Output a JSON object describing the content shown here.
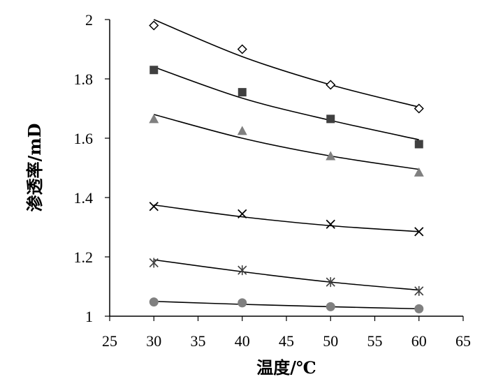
{
  "chart_data": {
    "type": "scatter",
    "xlabel": "温度/℃",
    "ylabel": "渗透率/mD",
    "xlim": [
      25,
      65
    ],
    "ylim": [
      1,
      2
    ],
    "xticks": [
      25,
      30,
      35,
      40,
      45,
      50,
      55,
      60,
      65
    ],
    "yticks": [
      1,
      1.2,
      1.4,
      1.6,
      1.8,
      2
    ],
    "ytick_labels": [
      "1",
      "1.2",
      "1.4",
      "1.6",
      "1.8",
      "2"
    ],
    "grid": false,
    "legend": "none",
    "x": [
      30,
      40,
      50,
      60
    ],
    "series": [
      {
        "marker": "diamond-open",
        "color": "#000000",
        "values": [
          1.98,
          1.9,
          1.78,
          1.7
        ],
        "trend": [
          2.0,
          1.875,
          1.78,
          1.705
        ]
      },
      {
        "marker": "square",
        "color": "#404040",
        "values": [
          1.83,
          1.755,
          1.665,
          1.58
        ],
        "trend": [
          1.84,
          1.735,
          1.66,
          1.595
        ]
      },
      {
        "marker": "triangle",
        "color": "#808080",
        "values": [
          1.665,
          1.625,
          1.54,
          1.485
        ],
        "trend": [
          1.68,
          1.6,
          1.54,
          1.495
        ]
      },
      {
        "marker": "x",
        "color": "#000000",
        "values": [
          1.37,
          1.345,
          1.31,
          1.285
        ],
        "trend": [
          1.375,
          1.335,
          1.305,
          1.285
        ]
      },
      {
        "marker": "star",
        "color": "#404040",
        "values": [
          1.18,
          1.155,
          1.115,
          1.085
        ],
        "trend": [
          1.19,
          1.15,
          1.115,
          1.088
        ]
      },
      {
        "marker": "circle",
        "color": "#808080",
        "values": [
          1.048,
          1.045,
          1.032,
          1.025
        ],
        "trend": [
          1.05,
          1.04,
          1.032,
          1.025
        ]
      }
    ]
  }
}
